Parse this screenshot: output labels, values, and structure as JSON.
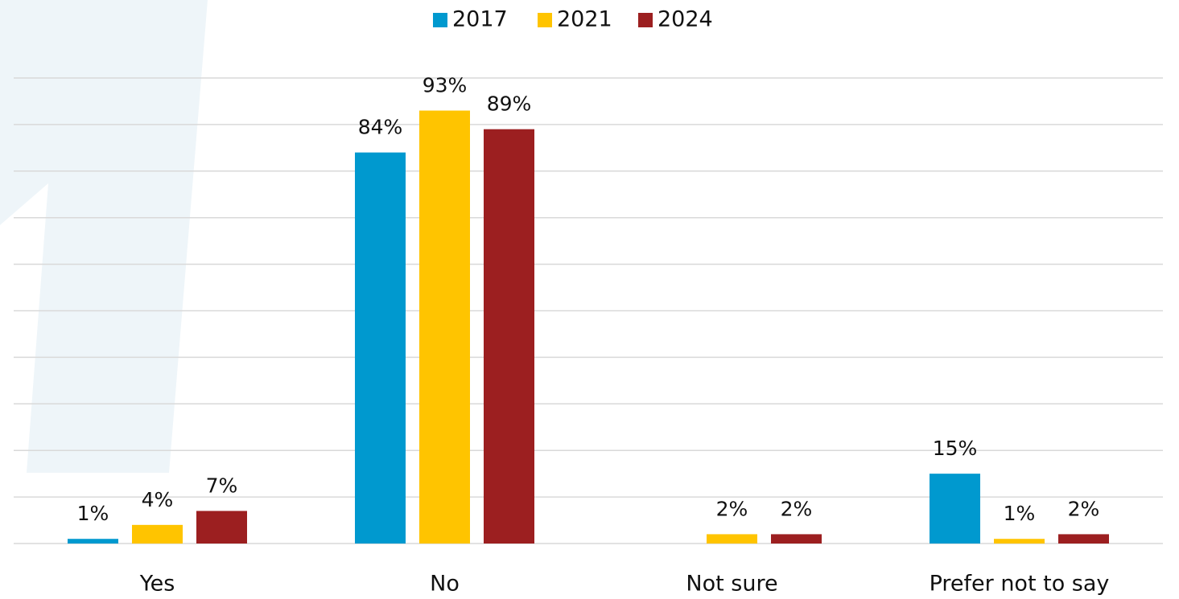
{
  "chart_data": {
    "type": "bar",
    "categories": [
      "Yes",
      "No",
      "Not sure",
      "Prefer not to say"
    ],
    "series": [
      {
        "name": "2017",
        "color": "#0099cf",
        "values": [
          1,
          84,
          null,
          15
        ],
        "value_labels": [
          "1%",
          "84%",
          null,
          "15%"
        ]
      },
      {
        "name": "2021",
        "color": "#ffc400",
        "values": [
          4,
          93,
          2,
          1
        ],
        "value_labels": [
          "4%",
          "93%",
          "2%",
          "1%"
        ]
      },
      {
        "name": "2024",
        "color": "#9c1f20",
        "values": [
          7,
          89,
          2,
          2
        ],
        "value_labels": [
          "7%",
          "89%",
          "2%",
          "2%"
        ]
      }
    ],
    "ylim": [
      0,
      100
    ],
    "yticks": [
      0,
      10,
      20,
      30,
      40,
      50,
      60,
      70,
      80,
      90,
      100
    ],
    "grid": true,
    "legend": "top"
  }
}
